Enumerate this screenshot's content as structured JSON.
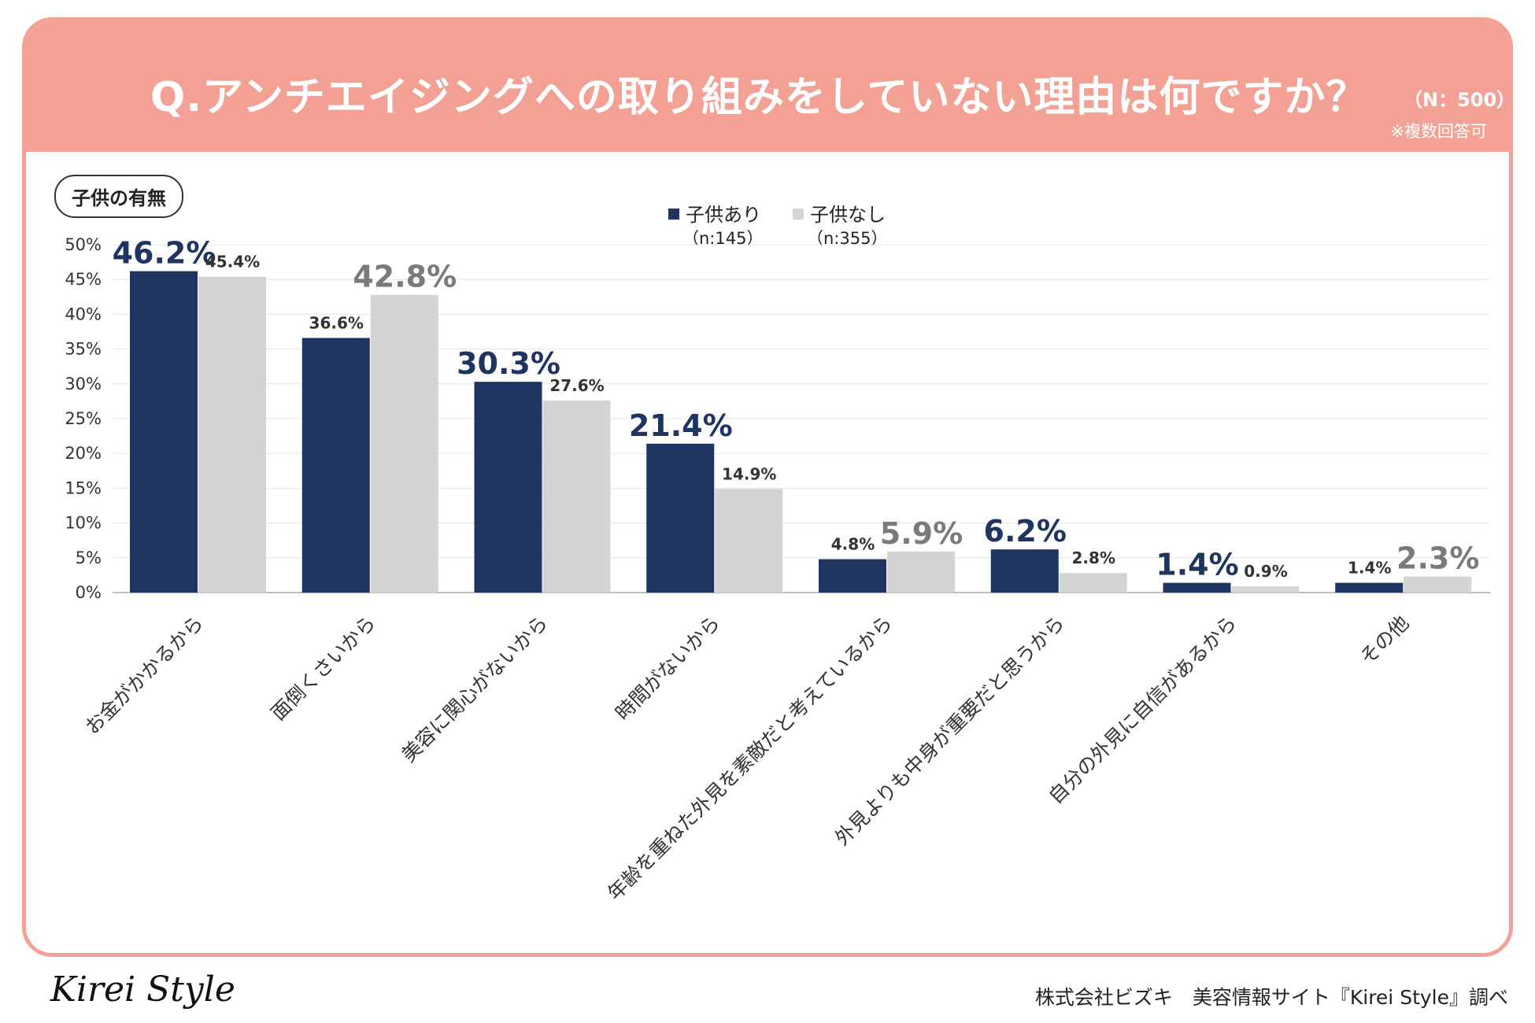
{
  "header": {
    "title": "Q.アンチエイジングへの取り組みをしていない理由は何ですか？",
    "n_label": "（N：500）",
    "note": "※複数回答可"
  },
  "chart_tag": "子供の有無",
  "legend": [
    {
      "name": "子供あり",
      "n": "（n:145）",
      "color": "#1f3460"
    },
    {
      "name": "子供なし",
      "n": "（n:355）",
      "color": "#d4d4d4"
    }
  ],
  "colors": {
    "accent": "#f4a195",
    "highlight_navy": "#1f3460",
    "highlight_gray": "#7a7a7a",
    "label_dark": "#333333"
  },
  "chart_data": {
    "type": "bar",
    "title": "Q.アンチエイジングへの取り組みをしていない理由は何ですか？",
    "xlabel": "",
    "ylabel": "",
    "ylim": [
      0,
      50
    ],
    "yticks": [
      0,
      5,
      10,
      15,
      20,
      25,
      30,
      35,
      40,
      45,
      50
    ],
    "ytick_labels": [
      "0%",
      "5%",
      "10%",
      "15%",
      "20%",
      "25%",
      "30%",
      "35%",
      "40%",
      "45%",
      "50%"
    ],
    "categories": [
      "お金がかかるから",
      "面倒くさいから",
      "美容に関心がないから",
      "時間がないから",
      "年齢を重ねた外見を素敵だと考えているから",
      "外見よりも中身が重要だと思うから",
      "自分の外見に自信があるから",
      "その他"
    ],
    "series": [
      {
        "name": "子供あり",
        "values": [
          46.2,
          36.6,
          30.3,
          21.4,
          4.8,
          6.2,
          1.4,
          1.4
        ],
        "labels": [
          "46.2%",
          "36.6%",
          "30.3%",
          "21.4%",
          "4.8%",
          "6.2%",
          "1.4%",
          "1.4%"
        ]
      },
      {
        "name": "子供なし",
        "values": [
          45.4,
          42.8,
          27.6,
          14.9,
          5.9,
          2.8,
          0.9,
          2.3
        ],
        "labels": [
          "45.4%",
          "42.8%",
          "27.6%",
          "14.9%",
          "5.9%",
          "2.8%",
          "0.9%",
          "2.3%"
        ]
      }
    ],
    "highlighted_series_per_category": [
      0,
      1,
      0,
      0,
      1,
      0,
      0,
      1
    ],
    "grid": true,
    "legend_position": "top-center"
  },
  "footer": {
    "logo": "Kirei Style",
    "credit": "株式会社ビズキ　美容情報サイト『Kirei Style』調べ"
  }
}
